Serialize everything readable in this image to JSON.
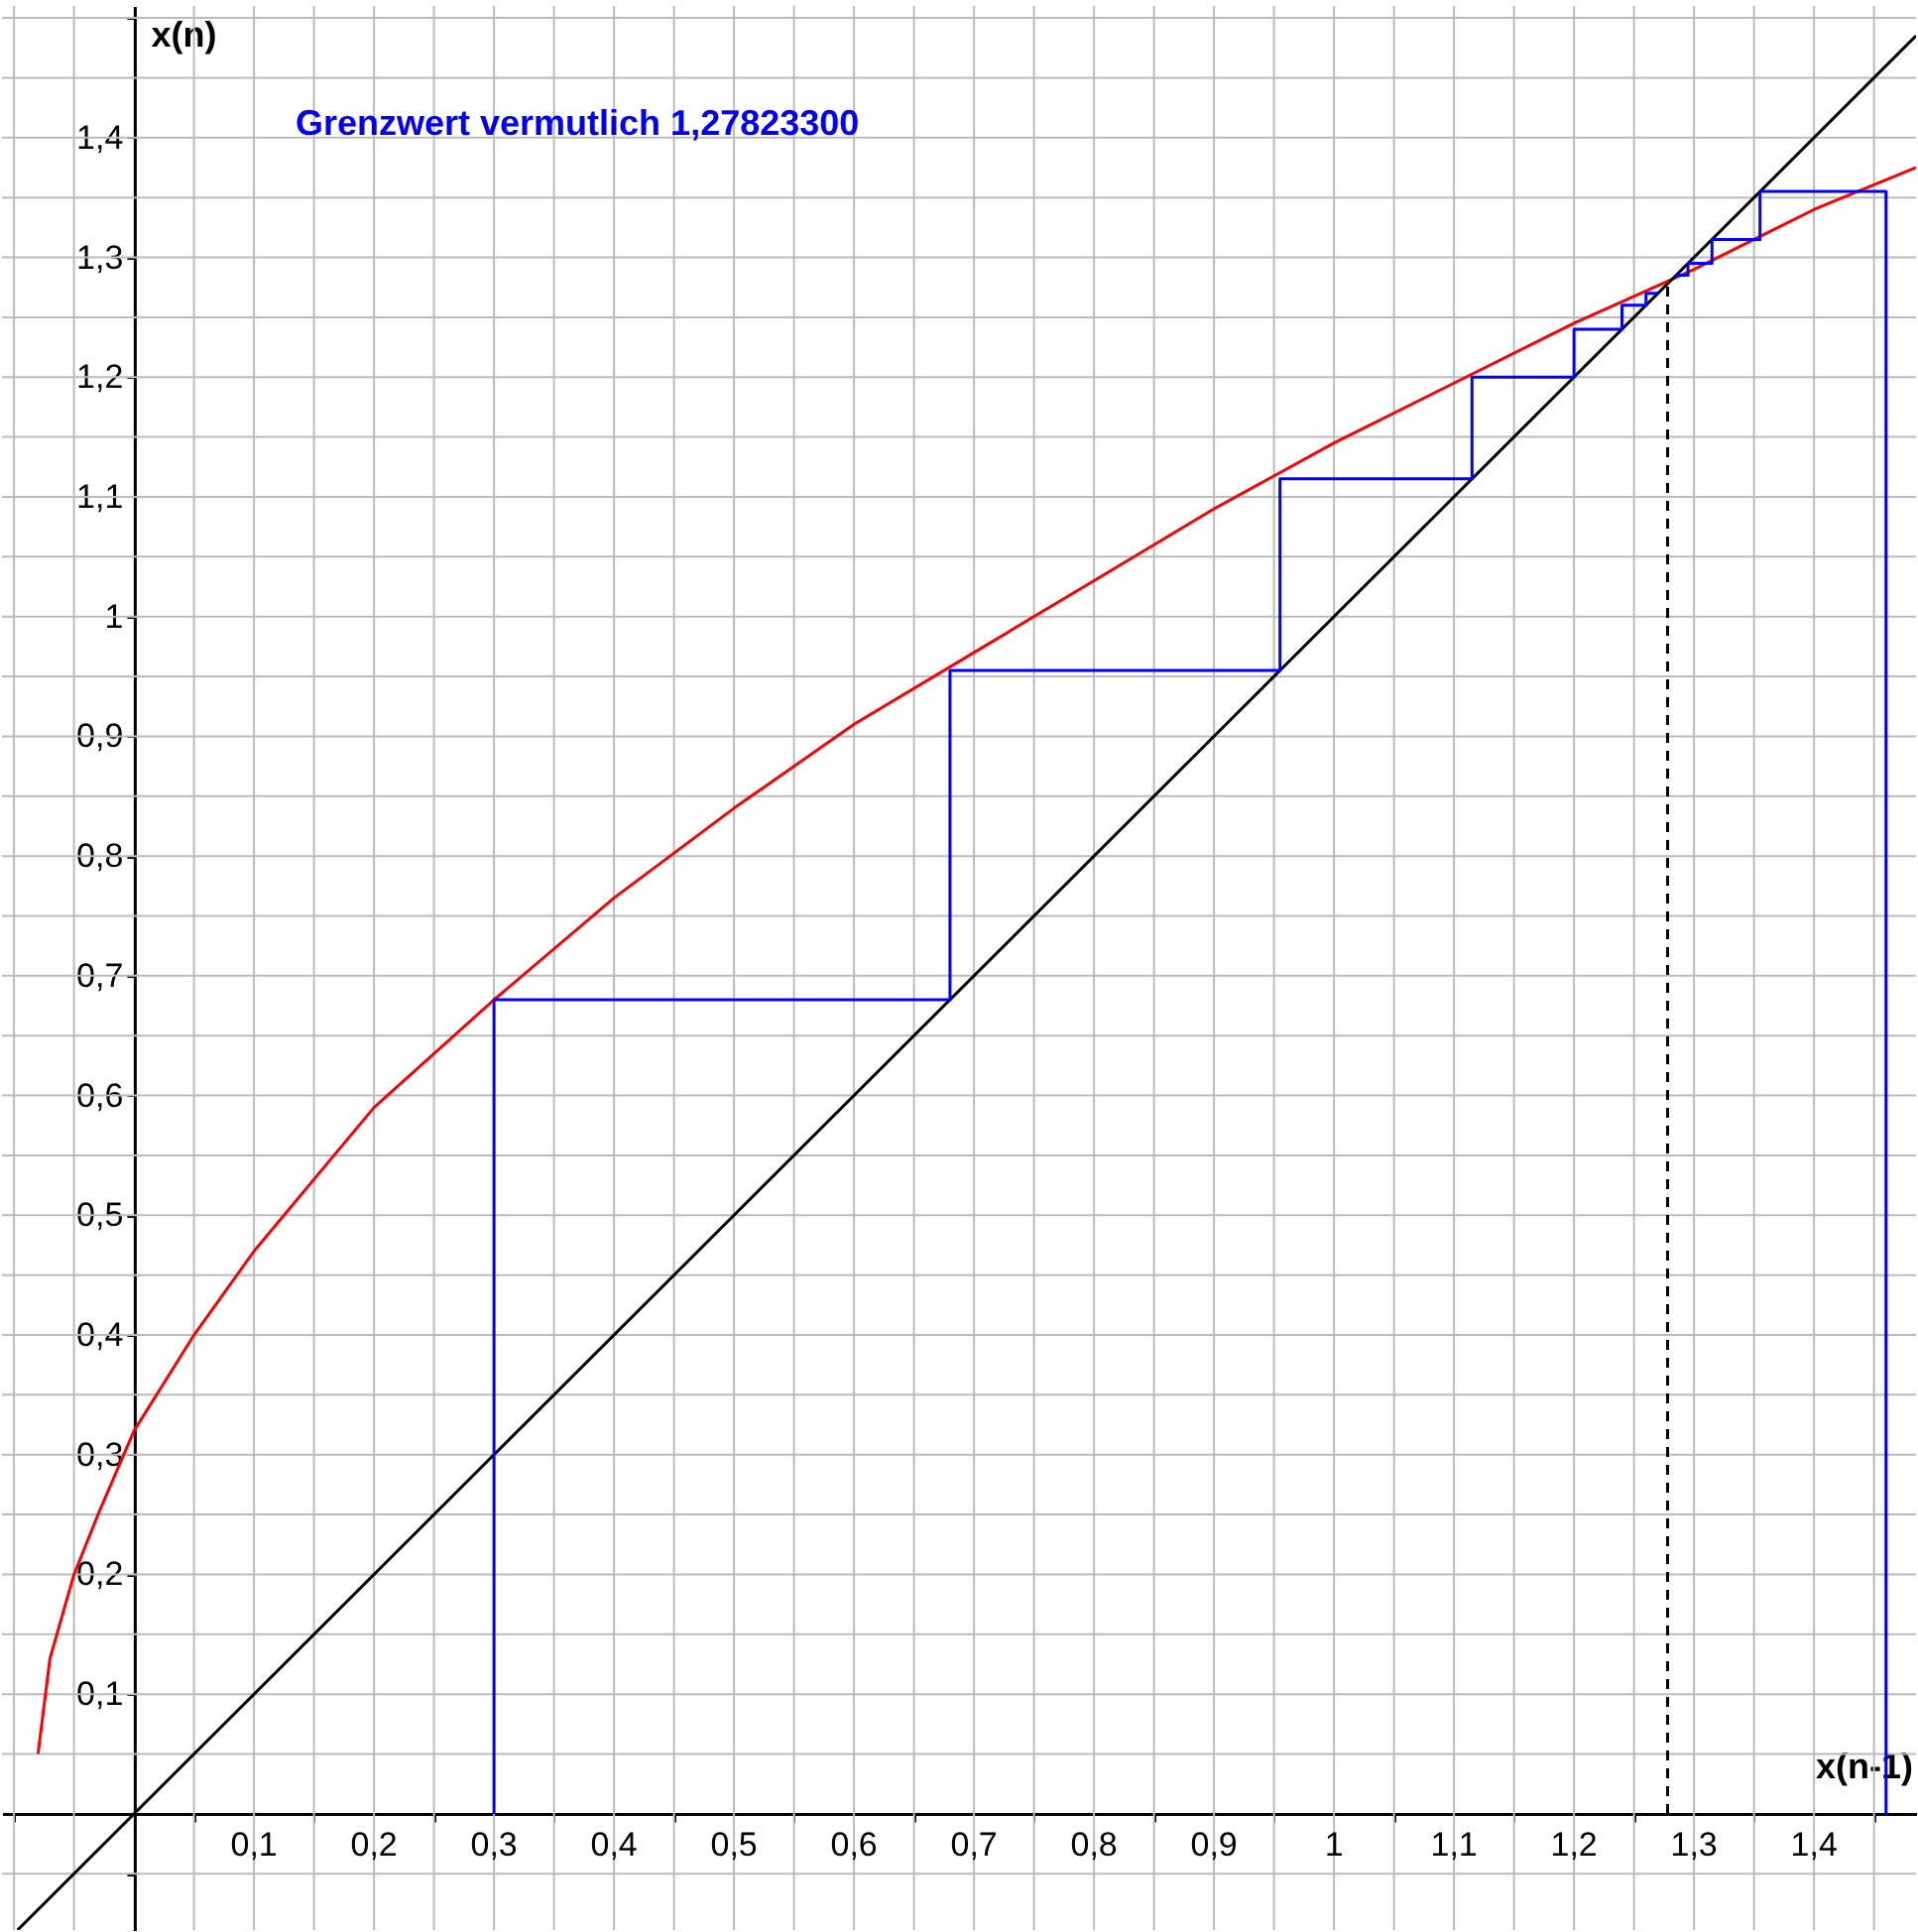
{
  "chart_data": {
    "type": "line",
    "xlabel": "x(n-1)",
    "ylabel": "x(n)",
    "annotations": [
      "Grenzwert vermutlich 1,27823300"
    ],
    "xlim": [
      -0.11,
      1.485
    ],
    "ylim": [
      -0.097,
      1.51
    ],
    "xticks": [
      {
        "value": -0.1,
        "label": null
      },
      {
        "value": -0.05,
        "label": null
      },
      {
        "value": 0.05,
        "label": null
      },
      {
        "value": 0.1,
        "label": "0,1"
      },
      {
        "value": 0.15,
        "label": null
      },
      {
        "value": 0.2,
        "label": "0,2"
      },
      {
        "value": 0.25,
        "label": null
      },
      {
        "value": 0.3,
        "label": "0,3"
      },
      {
        "value": 0.35,
        "label": null
      },
      {
        "value": 0.4,
        "label": "0,4"
      },
      {
        "value": 0.45,
        "label": null
      },
      {
        "value": 0.5,
        "label": "0,5"
      },
      {
        "value": 0.55,
        "label": null
      },
      {
        "value": 0.6,
        "label": "0,6"
      },
      {
        "value": 0.65,
        "label": null
      },
      {
        "value": 0.7,
        "label": "0,7"
      },
      {
        "value": 0.75,
        "label": null
      },
      {
        "value": 0.8,
        "label": "0,8"
      },
      {
        "value": 0.85,
        "label": null
      },
      {
        "value": 0.9,
        "label": "0,9"
      },
      {
        "value": 0.95,
        "label": null
      },
      {
        "value": 1,
        "label": "1"
      },
      {
        "value": 1.05,
        "label": null
      },
      {
        "value": 1.1,
        "label": "1,1"
      },
      {
        "value": 1.15,
        "label": null
      },
      {
        "value": 1.2,
        "label": "1,2"
      },
      {
        "value": 1.25,
        "label": null
      },
      {
        "value": 1.3,
        "label": "1,3"
      },
      {
        "value": 1.35,
        "label": null
      },
      {
        "value": 1.4,
        "label": "1,4"
      },
      {
        "value": 1.45,
        "label": null
      }
    ],
    "yticks": [
      {
        "value": -0.05,
        "label": null
      },
      {
        "value": 0.05,
        "label": null
      },
      {
        "value": 0.1,
        "label": "0,1"
      },
      {
        "value": 0.15,
        "label": null
      },
      {
        "value": 0.2,
        "label": "0,2"
      },
      {
        "value": 0.25,
        "label": null
      },
      {
        "value": 0.3,
        "label": "0,3"
      },
      {
        "value": 0.35,
        "label": null
      },
      {
        "value": 0.4,
        "label": "0,4"
      },
      {
        "value": 0.45,
        "label": null
      },
      {
        "value": 0.5,
        "label": "0,5"
      },
      {
        "value": 0.55,
        "label": null
      },
      {
        "value": 0.6,
        "label": "0,6"
      },
      {
        "value": 0.65,
        "label": null
      },
      {
        "value": 0.7,
        "label": "0,7"
      },
      {
        "value": 0.75,
        "label": null
      },
      {
        "value": 0.8,
        "label": "0,8"
      },
      {
        "value": 0.85,
        "label": null
      },
      {
        "value": 0.9,
        "label": "0,9"
      },
      {
        "value": 0.95,
        "label": null
      },
      {
        "value": 1,
        "label": "1"
      },
      {
        "value": 1.05,
        "label": null
      },
      {
        "value": 1.1,
        "label": "1,1"
      },
      {
        "value": 1.15,
        "label": null
      },
      {
        "value": 1.2,
        "label": "1,2"
      },
      {
        "value": 1.25,
        "label": null
      },
      {
        "value": 1.3,
        "label": "1,3"
      },
      {
        "value": 1.35,
        "label": null
      },
      {
        "value": 1.4,
        "label": "1,4"
      },
      {
        "value": 1.45,
        "label": null
      },
      {
        "value": 1.5,
        "label": null
      }
    ],
    "grid": true,
    "marker": "none",
    "series": [
      {
        "color": "#ff0000",
        "x": [
          -0.08,
          -0.07,
          -0.05,
          -0.03,
          0,
          0.05,
          0.1,
          0.2,
          0.3,
          0.4,
          0.5,
          0.6,
          0.7,
          0.8,
          0.9,
          1.0,
          1.1,
          1.2,
          1.3,
          1.4,
          1.485
        ],
        "values": [
          0.05,
          0.13,
          0.2,
          0.25,
          0.32,
          0.4,
          0.47,
          0.59,
          0.68,
          0.765,
          0.84,
          0.91,
          0.97,
          1.03,
          1.09,
          1.145,
          1.195,
          1.245,
          1.29,
          1.34,
          1.375
        ]
      },
      {
        "color": "#000000",
        "x": [
          -0.097,
          1.485
        ],
        "values": [
          -0.097,
          1.485
        ]
      },
      {
        "color": "#0000ff",
        "x": [
          0.3,
          0.3,
          0.68,
          0.68,
          0.955,
          0.955,
          1.115,
          1.115,
          1.2,
          1.2,
          1.24,
          1.24,
          1.26,
          1.26,
          1.27
        ],
        "values": [
          0,
          0.68,
          0.68,
          0.955,
          0.955,
          1.115,
          1.115,
          1.2,
          1.2,
          1.24,
          1.24,
          1.26,
          1.26,
          1.27,
          1.27
        ]
      },
      {
        "color": "#0000ff",
        "x": [
          1.46,
          1.46,
          1.355,
          1.355,
          1.315,
          1.315,
          1.295,
          1.295,
          1.285
        ],
        "values": [
          0,
          1.355,
          1.355,
          1.315,
          1.315,
          1.295,
          1.295,
          1.285,
          1.285
        ]
      },
      {
        "color": "#000000",
        "line_style": "dashed",
        "x": [
          1.278,
          1.278
        ],
        "values": [
          0,
          1.278
        ]
      }
    ]
  }
}
